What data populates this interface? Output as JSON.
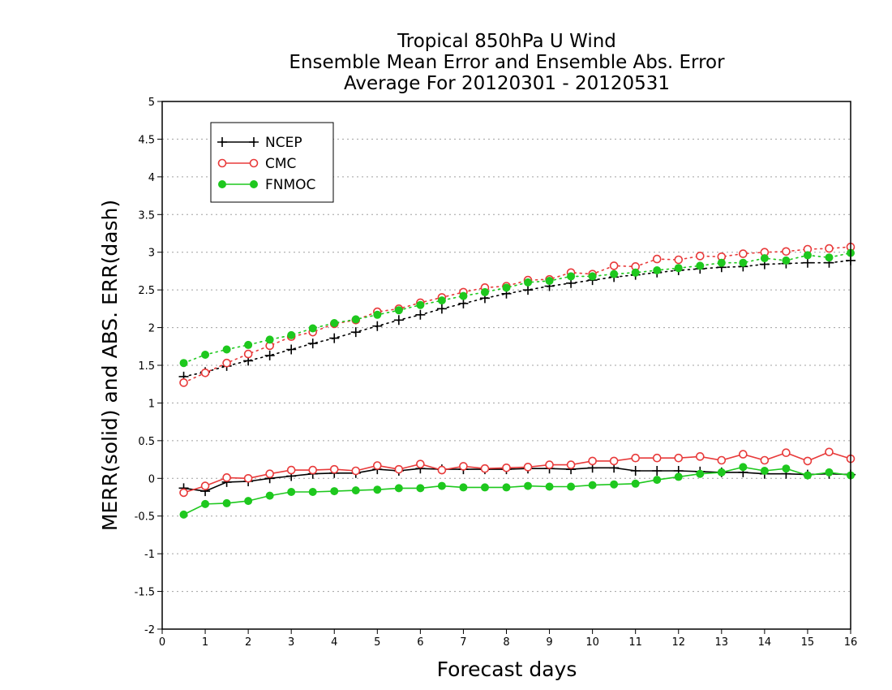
{
  "chart_data": {
    "type": "line",
    "title": [
      "Tropical 850hPa U Wind",
      "Ensemble Mean Error and Ensemble Abs. Error",
      "Average For 20120301 - 20120531"
    ],
    "xlabel": "Forecast days",
    "ylabel": "MERR(solid) and ABS. ERR(dash)",
    "xlim": [
      0,
      16
    ],
    "ylim": [
      -2,
      5
    ],
    "xticks": [
      "0",
      "1",
      "2",
      "3",
      "4",
      "5",
      "6",
      "7",
      "8",
      "9",
      "10",
      "11",
      "12",
      "13",
      "14",
      "15",
      "16"
    ],
    "yticks": [
      "-2",
      "-1.5",
      "-1",
      "-0.5",
      "0",
      "0.5",
      "1",
      "1.5",
      "2",
      "2.5",
      "3",
      "3.5",
      "4",
      "4.5",
      "5"
    ],
    "grid": "horizontal-dotted",
    "legend_position": "top-left",
    "x": [
      0.5,
      1,
      1.5,
      2,
      2.5,
      3,
      3.5,
      4,
      4.5,
      5,
      5.5,
      6,
      6.5,
      7,
      7.5,
      8,
      8.5,
      9,
      9.5,
      10,
      10.5,
      11,
      11.5,
      12,
      12.5,
      13,
      13.5,
      14,
      14.5,
      15,
      15.5,
      16
    ],
    "series": [
      {
        "name": "NCEP",
        "color": "#000000",
        "marker": "plus",
        "merr": [
          -0.13,
          -0.17,
          -0.05,
          -0.04,
          0.0,
          0.03,
          0.06,
          0.07,
          0.07,
          0.12,
          0.1,
          0.13,
          0.12,
          0.12,
          0.12,
          0.12,
          0.13,
          0.13,
          0.12,
          0.14,
          0.14,
          0.1,
          0.1,
          0.1,
          0.09,
          0.08,
          0.08,
          0.06,
          0.06,
          0.05,
          0.06,
          0.05
        ],
        "abs_err": [
          1.35,
          1.41,
          1.49,
          1.56,
          1.63,
          1.71,
          1.79,
          1.86,
          1.94,
          2.02,
          2.1,
          2.17,
          2.25,
          2.32,
          2.39,
          2.45,
          2.5,
          2.55,
          2.59,
          2.63,
          2.67,
          2.7,
          2.73,
          2.76,
          2.78,
          2.8,
          2.81,
          2.84,
          2.85,
          2.86,
          2.86,
          2.89
        ]
      },
      {
        "name": "CMC",
        "color": "#e83a3a",
        "marker": "open-circle",
        "merr": [
          -0.19,
          -0.1,
          0.01,
          0.0,
          0.06,
          0.11,
          0.11,
          0.12,
          0.1,
          0.17,
          0.12,
          0.19,
          0.11,
          0.16,
          0.13,
          0.14,
          0.15,
          0.18,
          0.18,
          0.23,
          0.23,
          0.27,
          0.27,
          0.27,
          0.29,
          0.24,
          0.32,
          0.24,
          0.34,
          0.23,
          0.35,
          0.26
        ],
        "abs_err": [
          1.27,
          1.4,
          1.53,
          1.65,
          1.76,
          1.88,
          1.94,
          2.05,
          2.1,
          2.21,
          2.25,
          2.33,
          2.4,
          2.47,
          2.53,
          2.55,
          2.63,
          2.64,
          2.73,
          2.71,
          2.82,
          2.81,
          2.91,
          2.9,
          2.95,
          2.94,
          2.98,
          3.0,
          3.01,
          3.04,
          3.05,
          3.07
        ]
      },
      {
        "name": "FNMOC",
        "color": "#1ec81e",
        "marker": "filled-circle",
        "merr": [
          -0.48,
          -0.34,
          -0.33,
          -0.3,
          -0.23,
          -0.18,
          -0.18,
          -0.17,
          -0.16,
          -0.15,
          -0.13,
          -0.13,
          -0.1,
          -0.12,
          -0.12,
          -0.12,
          -0.1,
          -0.11,
          -0.11,
          -0.09,
          -0.08,
          -0.07,
          -0.02,
          0.02,
          0.06,
          0.08,
          0.15,
          0.1,
          0.13,
          0.04,
          0.08,
          0.04
        ],
        "abs_err": [
          1.53,
          1.64,
          1.71,
          1.77,
          1.84,
          1.9,
          1.99,
          2.06,
          2.11,
          2.17,
          2.23,
          2.3,
          2.36,
          2.42,
          2.47,
          2.53,
          2.6,
          2.62,
          2.68,
          2.68,
          2.71,
          2.73,
          2.76,
          2.79,
          2.82,
          2.86,
          2.86,
          2.92,
          2.89,
          2.96,
          2.93,
          2.99
        ]
      }
    ]
  }
}
